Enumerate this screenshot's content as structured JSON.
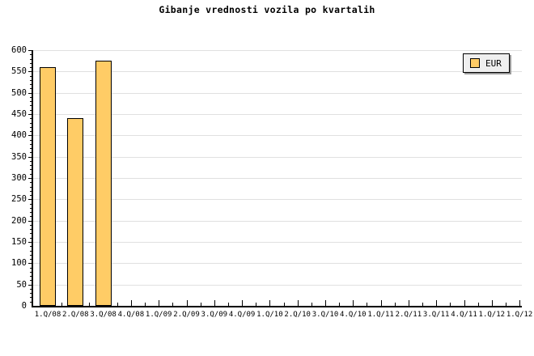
{
  "legend": {
    "label": "EUR"
  },
  "colors": {
    "background": "#ffffff",
    "bar_fill": "#ffcc66",
    "bar_border": "#000000",
    "grid": "#e0e0e0",
    "axis": "#000000",
    "text": "#000000",
    "legend_bg": "#efefef",
    "legend_shadow": "#999999"
  },
  "chart_data": {
    "type": "bar",
    "title": "Gibanje vrednosti vozila po kvartalih",
    "categories": [
      "1.Q/08",
      "2.Q/08",
      "3.Q/08",
      "4.Q/08",
      "1.Q/09",
      "2.Q/09",
      "3.Q/09",
      "4.Q/09",
      "1.Q/10",
      "2.Q/10",
      "3.Q/10",
      "4.Q/10",
      "1.Q/11",
      "2.Q/11",
      "3.Q/11",
      "4.Q/11",
      "1.Q/12",
      "1.Q/12"
    ],
    "series": [
      {
        "name": "EUR",
        "values": [
          560,
          440,
          575,
          null,
          null,
          null,
          null,
          null,
          null,
          null,
          null,
          null,
          null,
          null,
          null,
          null,
          null,
          null
        ]
      }
    ],
    "xlabel": "",
    "ylabel": "",
    "ylim": [
      0,
      600
    ],
    "ytick_major": 50,
    "ytick_minor": 10,
    "grid": true,
    "legend_position": "top-right"
  }
}
